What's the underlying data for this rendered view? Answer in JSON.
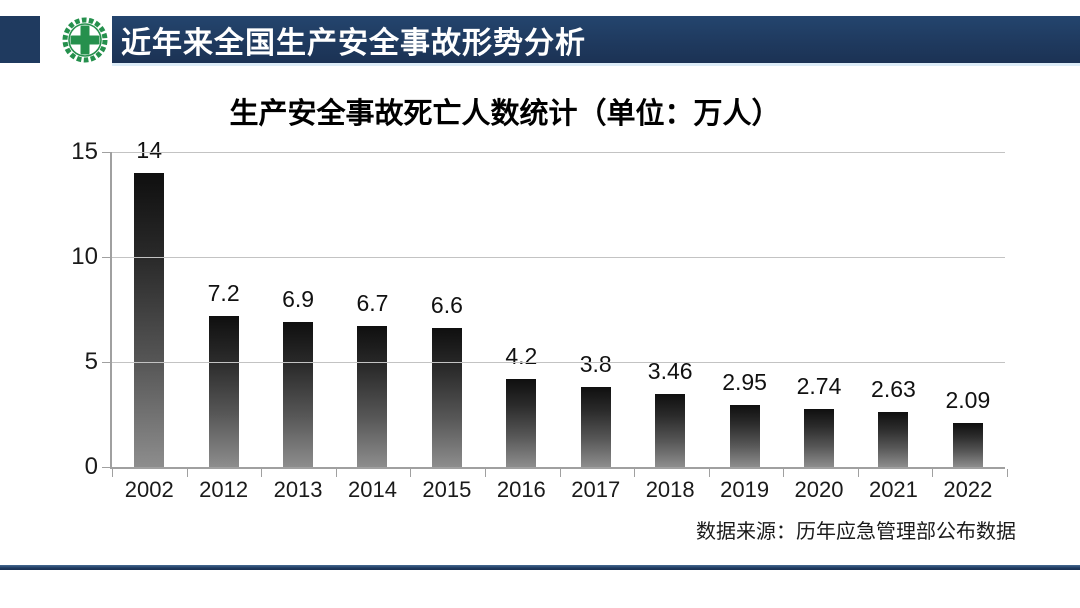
{
  "header": {
    "title": "近年来全国生产安全事故形势分析",
    "banner_color": "#1f3a5f",
    "logo_icon": "china-work-safety-emblem",
    "logo_green": "#25904d"
  },
  "chart_data": {
    "type": "bar",
    "title": "生产安全事故死亡人数统计（单位：万人）",
    "categories": [
      "2002",
      "2012",
      "2013",
      "2014",
      "2015",
      "2016",
      "2017",
      "2018",
      "2019",
      "2020",
      "2021",
      "2022"
    ],
    "values": [
      14,
      7.2,
      6.9,
      6.7,
      6.6,
      4.2,
      3.8,
      3.46,
      2.95,
      2.74,
      2.63,
      2.09
    ],
    "value_labels": [
      "14",
      "7.2",
      "6.9",
      "6.7",
      "6.6",
      "4.2",
      "3.8",
      "3.46",
      "2.95",
      "2.74",
      "2.63",
      "2.09"
    ],
    "xlabel": "",
    "ylabel": "",
    "ylim": [
      0,
      15
    ],
    "yticks": [
      0,
      5,
      10,
      15
    ],
    "grid": true,
    "legend": "none",
    "bar_color_top": "#0f0f0f",
    "bar_color_bottom": "#8d8d8d",
    "source_note": "数据来源：历年应急管理部公布数据"
  },
  "footer": {
    "rule_color": "#1f3a5f"
  }
}
